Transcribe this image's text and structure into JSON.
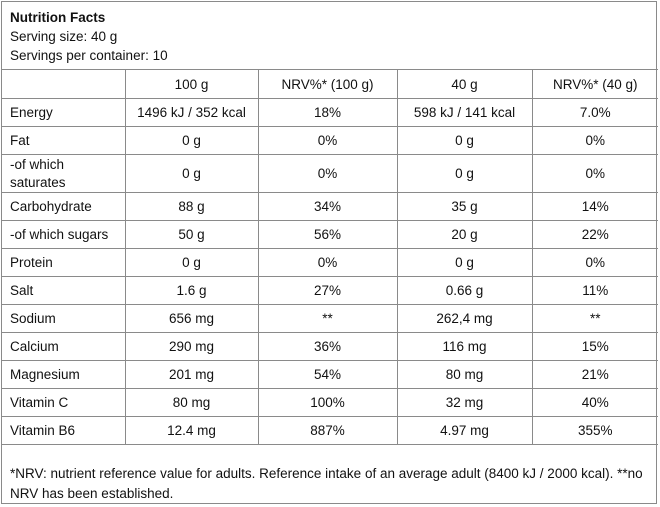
{
  "header": {
    "title": "Nutrition Facts",
    "serving_size": "Serving size: 40 g",
    "servings_per_container": "Servings per container: 10"
  },
  "columns": [
    "",
    "100 g",
    "NRV%* (100 g)",
    "40 g",
    "NRV%* (40 g)"
  ],
  "rows": [
    {
      "nutrient": "Energy",
      "per100": "1496 kJ / 352 kcal",
      "nrv100": "18%",
      "per40": "598 kJ / 141 kcal",
      "nrv40": "7.0%"
    },
    {
      "nutrient": "Fat",
      "per100": "0 g",
      "nrv100": "0%",
      "per40": "0 g",
      "nrv40": "0%"
    },
    {
      "nutrient": "-of which saturates",
      "per100": "0 g",
      "nrv100": "0%",
      "per40": "0 g",
      "nrv40": "0%"
    },
    {
      "nutrient": "Carbohydrate",
      "per100": "88 g",
      "nrv100": "34%",
      "per40": "35 g",
      "nrv40": "14%"
    },
    {
      "nutrient": "-of which sugars",
      "per100": "50 g",
      "nrv100": "56%",
      "per40": "20 g",
      "nrv40": "22%"
    },
    {
      "nutrient": "Protein",
      "per100": "0 g",
      "nrv100": "0%",
      "per40": "0 g",
      "nrv40": "0%"
    },
    {
      "nutrient": "Salt",
      "per100": "1.6 g",
      "nrv100": "27%",
      "per40": "0.66 g",
      "nrv40": "11%"
    },
    {
      "nutrient": "Sodium",
      "per100": "656 mg",
      "nrv100": "**",
      "per40": "262,4 mg",
      "nrv40": "**"
    },
    {
      "nutrient": "Calcium",
      "per100": "290 mg",
      "nrv100": "36%",
      "per40": "116 mg",
      "nrv40": "15%"
    },
    {
      "nutrient": "Magnesium",
      "per100": "201 mg",
      "nrv100": "54%",
      "per40": "80 mg",
      "nrv40": "21%"
    },
    {
      "nutrient": "Vitamin C",
      "per100": "80 mg",
      "nrv100": "100%",
      "per40": "32 mg",
      "nrv40": "40%"
    },
    {
      "nutrient": "Vitamin B6",
      "per100": "12.4 mg",
      "nrv100": "887%",
      "per40": "4.97 mg",
      "nrv40": "355%"
    }
  ],
  "footnote": "*NRV: nutrient reference value for adults. Reference intake of an average adult (8400 kJ / 2000 kcal). **no NRV has been established."
}
